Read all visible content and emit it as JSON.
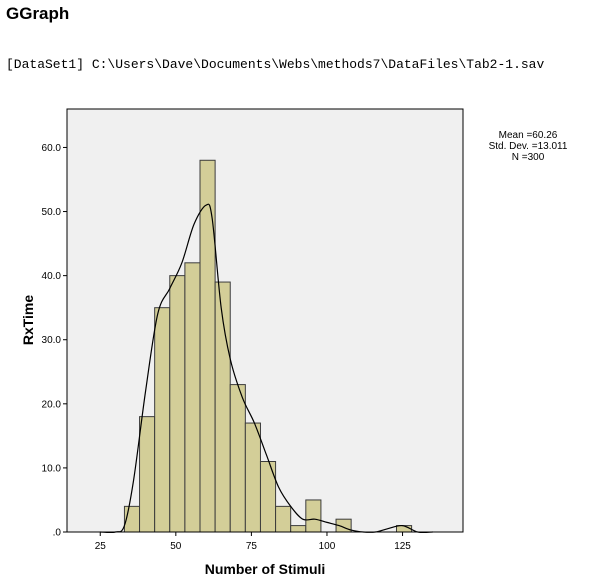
{
  "header": {
    "title": "GGraph",
    "dataset": "[DataSet1] C:\\Users\\Dave\\Documents\\Webs\\methods7\\DataFiles\\Tab2-1.sav"
  },
  "stats": {
    "mean": "Mean =60.26",
    "sd": "Std. Dev. =13.011",
    "n": "N =300"
  },
  "colors": {
    "plot_bg": "#f0f0f0",
    "bar_fill": "#d3ce98",
    "bar_stroke": "#3c3c3c",
    "curve": "#000000"
  },
  "chart_data": {
    "type": "bar",
    "subtype": "histogram",
    "xlabel": "Number of Stimuli",
    "ylabel": "RxTime",
    "xlim": [
      14,
      145
    ],
    "ylim": [
      0,
      66
    ],
    "xticks": [
      25,
      50,
      75,
      100,
      125
    ],
    "xtick_labels": [
      "25",
      "50",
      "75",
      "100",
      "125"
    ],
    "yticks": [
      0,
      10,
      20,
      30,
      40,
      50,
      60
    ],
    "ytick_labels": [
      ".0",
      "10.0",
      "20.0",
      "30.0",
      "40.0",
      "50.0",
      "60.0"
    ],
    "bin_width": 5,
    "bins": [
      {
        "start": 33,
        "value": 4
      },
      {
        "start": 38,
        "value": 18
      },
      {
        "start": 43,
        "value": 35
      },
      {
        "start": 48,
        "value": 40
      },
      {
        "start": 53,
        "value": 42
      },
      {
        "start": 58,
        "value": 58
      },
      {
        "start": 63,
        "value": 39
      },
      {
        "start": 68,
        "value": 23
      },
      {
        "start": 73,
        "value": 17
      },
      {
        "start": 78,
        "value": 11
      },
      {
        "start": 83,
        "value": 4
      },
      {
        "start": 88,
        "value": 1
      },
      {
        "start": 93,
        "value": 5
      },
      {
        "start": 98,
        "value": 0
      },
      {
        "start": 103,
        "value": 2
      },
      {
        "start": 108,
        "value": 0
      },
      {
        "start": 113,
        "value": 0
      },
      {
        "start": 118,
        "value": 0
      },
      {
        "start": 123,
        "value": 1
      }
    ],
    "curve": {
      "x": [
        25,
        30,
        33,
        36,
        40,
        44,
        48,
        52,
        56,
        60,
        62,
        65,
        68,
        72,
        76,
        80,
        84,
        88,
        92,
        96,
        100,
        104,
        108,
        112,
        116,
        120,
        125,
        130,
        135
      ],
      "y": [
        0,
        0,
        1,
        8,
        22,
        34,
        38,
        42,
        48,
        51,
        49,
        35,
        27,
        21,
        17,
        12,
        7,
        4,
        2,
        2,
        1.5,
        1,
        0.3,
        0,
        0,
        0.5,
        1,
        0,
        0
      ]
    },
    "grid": false,
    "legend": "none"
  }
}
